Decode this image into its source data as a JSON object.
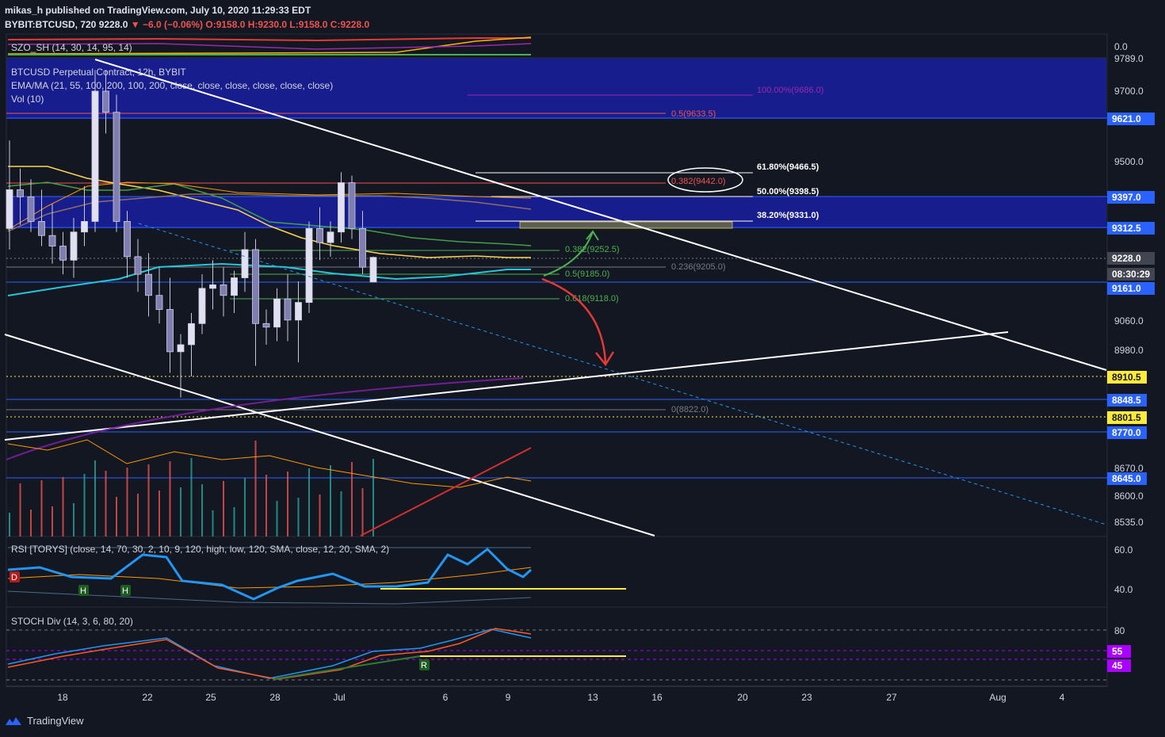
{
  "header": {
    "publish_line": "mikas_h published on TradingView.com, July 10, 2020 11:29:33 EDT",
    "symbol_line_prefix": "BYBIT:BTCUSD, 720",
    "last_price": "9228.0",
    "change": "▼ −6.0 (−0.06%)",
    "ohlc": "O:9158.0 H:9230.0 L:9158.0 C:9228.0"
  },
  "panes": {
    "szo": "SZO_SH (14, 30, 14, 95, 14)",
    "main_title": "BTCUSD Perpetual Contract, 12h, BYBIT",
    "ema": "EMA/MA (21, 55, 100, 200, 100, 200, close, close, close, close, close, close)",
    "vol": "Vol (10)",
    "rsi": "RSI [TORYS] (close, 14, 70, 30, 2, 10, 9, 120, high, low, 120, SMA, close, 12, 20, SMA, 2)",
    "stoch": "STOCH Div (14, 3, 6, 80, 20)"
  },
  "fib_labels": [
    {
      "text": "100.00%(9686.0)",
      "color": "#9c27b0"
    },
    {
      "text": "0.5(9633.5)",
      "color": "#ef5350"
    },
    {
      "text": "61.80%(9466.5)",
      "color": "#ffffff"
    },
    {
      "text": "0.382(9442.0)",
      "color": "#ef5350"
    },
    {
      "text": "50.00%(9398.5)",
      "color": "#ffffff"
    },
    {
      "text": "38.20%(9331.0)",
      "color": "#ffffff"
    },
    {
      "text": "0.382(9252.5)",
      "color": "#4caf50"
    },
    {
      "text": "0.236(9205.0)",
      "color": "#787b86"
    },
    {
      "text": "0.5(9185.0)",
      "color": "#4caf50"
    },
    {
      "text": "0.618(9118.0)",
      "color": "#4caf50"
    },
    {
      "text": "0(8822.0)",
      "color": "#787b86"
    }
  ],
  "price_axis": {
    "ticks": [
      "9700.0",
      "9500.0",
      "9060.0",
      "8980.0",
      "8670.0",
      "8600.0",
      "8535.0"
    ],
    "szo_tick": "0.0",
    "rsi_ticks": [
      "60.0",
      "40.0"
    ],
    "stoch_ticks": [
      "80"
    ],
    "partial_tick": "9789.0",
    "tags": [
      {
        "text": "9621.0",
        "bg": "#2962ff",
        "fg": "#ffffff"
      },
      {
        "text": "9397.0",
        "bg": "#2962ff",
        "fg": "#ffffff"
      },
      {
        "text": "9312.5",
        "bg": "#2962ff",
        "fg": "#ffffff"
      },
      {
        "text": "9228.0",
        "bg": "#434651",
        "fg": "#ffffff"
      },
      {
        "text": "08:30:29",
        "bg": "#434651",
        "fg": "#ffffff"
      },
      {
        "text": "9161.0",
        "bg": "#2962ff",
        "fg": "#ffffff"
      },
      {
        "text": "8910.5",
        "bg": "#ffeb3b",
        "fg": "#131722"
      },
      {
        "text": "8848.5",
        "bg": "#2962ff",
        "fg": "#ffffff"
      },
      {
        "text": "8801.5",
        "bg": "#ffeb3b",
        "fg": "#131722"
      },
      {
        "text": "8770.0",
        "bg": "#2962ff",
        "fg": "#ffffff"
      },
      {
        "text": "8645.0",
        "bg": "#2962ff",
        "fg": "#ffffff"
      },
      {
        "text": "55",
        "bg": "#aa00ff",
        "fg": "#ffffff"
      },
      {
        "text": "45",
        "bg": "#aa00ff",
        "fg": "#ffffff"
      }
    ]
  },
  "time_axis": [
    "18",
    "22",
    "25",
    "28",
    "Jul",
    "6",
    "9",
    "13",
    "16",
    "20",
    "23",
    "27",
    "Aug",
    "4"
  ],
  "markers": {
    "d": "D",
    "h": "H",
    "r": "R"
  },
  "footer": {
    "brand": "TradingView"
  },
  "chart_data": {
    "type": "candlestick",
    "symbol": "BYBIT:BTCUSD",
    "candles": [
      {
        "o": 9310,
        "h": 9560,
        "l": 9250,
        "c": 9420
      },
      {
        "o": 9420,
        "h": 9480,
        "l": 9320,
        "c": 9400
      },
      {
        "o": 9400,
        "h": 9450,
        "l": 9300,
        "c": 9330
      },
      {
        "o": 9330,
        "h": 9420,
        "l": 9260,
        "c": 9290
      },
      {
        "o": 9290,
        "h": 9380,
        "l": 9210,
        "c": 9260
      },
      {
        "o": 9260,
        "h": 9300,
        "l": 9180,
        "c": 9220
      },
      {
        "o": 9220,
        "h": 9340,
        "l": 9170,
        "c": 9300
      },
      {
        "o": 9300,
        "h": 9430,
        "l": 9260,
        "c": 9330
      },
      {
        "o": 9330,
        "h": 9760,
        "l": 9300,
        "c": 9700
      },
      {
        "o": 9700,
        "h": 9760,
        "l": 9580,
        "c": 9640
      },
      {
        "o": 9640,
        "h": 9690,
        "l": 9300,
        "c": 9330
      },
      {
        "o": 9330,
        "h": 9360,
        "l": 9170,
        "c": 9230
      },
      {
        "o": 9230,
        "h": 9280,
        "l": 9130,
        "c": 9180
      },
      {
        "o": 9180,
        "h": 9240,
        "l": 9060,
        "c": 9120
      },
      {
        "o": 9120,
        "h": 9200,
        "l": 9040,
        "c": 9080
      },
      {
        "o": 9080,
        "h": 9170,
        "l": 8900,
        "c": 8960
      },
      {
        "o": 8960,
        "h": 9010,
        "l": 8830,
        "c": 8980
      },
      {
        "o": 8980,
        "h": 9070,
        "l": 8890,
        "c": 9040
      },
      {
        "o": 9040,
        "h": 9180,
        "l": 9010,
        "c": 9140
      },
      {
        "o": 9140,
        "h": 9220,
        "l": 9080,
        "c": 9150
      },
      {
        "o": 9150,
        "h": 9200,
        "l": 9060,
        "c": 9120
      },
      {
        "o": 9120,
        "h": 9190,
        "l": 9070,
        "c": 9170
      },
      {
        "o": 9170,
        "h": 9300,
        "l": 9130,
        "c": 9250
      },
      {
        "o": 9250,
        "h": 9280,
        "l": 8920,
        "c": 9040
      },
      {
        "o": 9040,
        "h": 9080,
        "l": 8980,
        "c": 9030
      },
      {
        "o": 9030,
        "h": 9140,
        "l": 8990,
        "c": 9110
      },
      {
        "o": 9110,
        "h": 9180,
        "l": 8990,
        "c": 9050
      },
      {
        "o": 9050,
        "h": 9160,
        "l": 8930,
        "c": 9100
      },
      {
        "o": 9100,
        "h": 9330,
        "l": 9070,
        "c": 9310
      },
      {
        "o": 9310,
        "h": 9370,
        "l": 9220,
        "c": 9270
      },
      {
        "o": 9270,
        "h": 9330,
        "l": 9230,
        "c": 9300
      },
      {
        "o": 9300,
        "h": 9470,
        "l": 9270,
        "c": 9440
      },
      {
        "o": 9440,
        "h": 9460,
        "l": 9280,
        "c": 9310
      },
      {
        "o": 9310,
        "h": 9360,
        "l": 9180,
        "c": 9200
      },
      {
        "o": 9158,
        "h": 9230,
        "l": 9158,
        "c": 9228
      }
    ]
  }
}
